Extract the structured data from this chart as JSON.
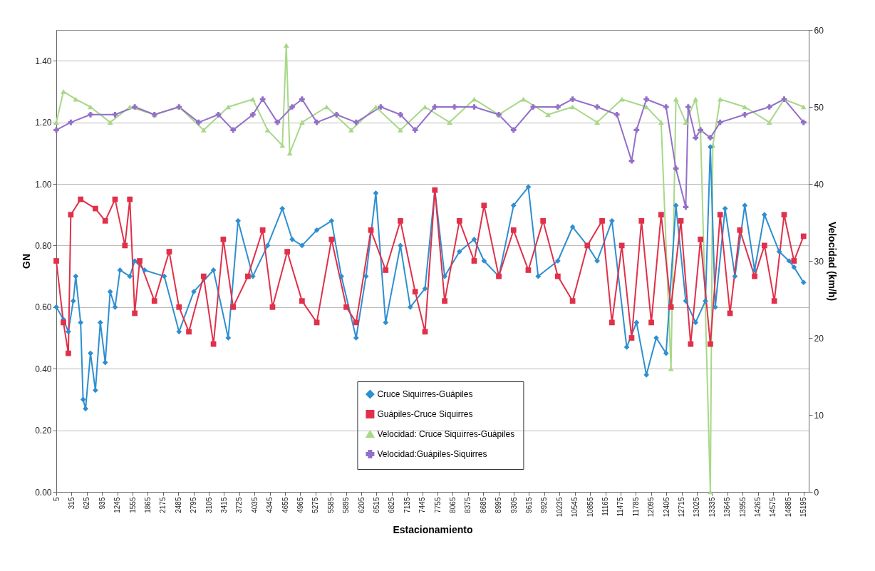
{
  "chart_data": {
    "type": "line",
    "xlabel": "Estacionamiento",
    "ylabel": "GN",
    "y2label": "Velocidad (km/h)",
    "xlim": [
      5,
      15300
    ],
    "xticks": [
      5,
      315,
      625,
      935,
      1245,
      1555,
      1865,
      2175,
      2485,
      2795,
      3105,
      3415,
      3725,
      4035,
      4345,
      4655,
      4965,
      5275,
      5585,
      5895,
      6205,
      6515,
      6825,
      7135,
      7445,
      7755,
      8065,
      8375,
      8685,
      8995,
      9305,
      9615,
      9925,
      10235,
      10545,
      10855,
      11165,
      11475,
      11785,
      12095,
      12405,
      12715,
      13025,
      13335,
      13645,
      13955,
      14265,
      14575,
      14885,
      15195
    ],
    "ylim": [
      0,
      1.5
    ],
    "yticks": [
      {
        "value": 0,
        "label": "0.00"
      },
      {
        "value": 0.2,
        "label": "0.20"
      },
      {
        "value": 0.4,
        "label": "0.40"
      },
      {
        "value": 0.6,
        "label": "0.60"
      },
      {
        "value": 0.8,
        "label": "0.80"
      },
      {
        "value": 1,
        "label": "1.00"
      },
      {
        "value": 1.2,
        "label": "1.20"
      },
      {
        "value": 1.4,
        "label": "1.40"
      }
    ],
    "y2lim": [
      0,
      60
    ],
    "y2ticks": [
      0,
      10,
      20,
      30,
      40,
      50,
      60
    ],
    "grid": "y",
    "legend": "bottom",
    "series": [
      {
        "name": "Cruce Siquirres-Guápiles",
        "color": "#2e8fd0",
        "marker": "diamond",
        "x": [
          5,
          150,
          250,
          350,
          400,
          500,
          550,
          600,
          700,
          800,
          900,
          1000,
          1100,
          1200,
          1300,
          1500,
          1600,
          1800,
          2200,
          2500,
          2800,
          3200,
          3500,
          3700,
          4000,
          4300,
          4600,
          4800,
          5000,
          5300,
          5600,
          5800,
          6100,
          6300,
          6500,
          6700,
          7000,
          7200,
          7500,
          7700,
          7900,
          8200,
          8500,
          8700,
          9000,
          9300,
          9600,
          9800,
          10200,
          10500,
          10800,
          11000,
          11300,
          11600,
          11800,
          12000,
          12200,
          12400,
          12600,
          12800,
          13000,
          13200,
          13300,
          13400,
          13600,
          13800,
          14000,
          14200,
          14400,
          14700,
          14900,
          15000,
          15195
        ],
        "values": [
          0.6,
          0.56,
          0.52,
          0.62,
          0.7,
          0.55,
          0.3,
          0.27,
          0.45,
          0.33,
          0.55,
          0.42,
          0.65,
          0.6,
          0.72,
          0.7,
          0.75,
          0.72,
          0.7,
          0.52,
          0.65,
          0.72,
          0.5,
          0.88,
          0.7,
          0.8,
          0.92,
          0.82,
          0.8,
          0.85,
          0.88,
          0.7,
          0.5,
          0.7,
          0.97,
          0.55,
          0.8,
          0.6,
          0.66,
          0.98,
          0.7,
          0.78,
          0.82,
          0.75,
          0.7,
          0.93,
          0.99,
          0.7,
          0.75,
          0.86,
          0.8,
          0.75,
          0.88,
          0.47,
          0.55,
          0.38,
          0.5,
          0.45,
          0.93,
          0.62,
          0.55,
          0.62,
          1.12,
          0.6,
          0.92,
          0.7,
          0.93,
          0.72,
          0.9,
          0.78,
          0.75,
          0.73,
          0.68
        ]
      },
      {
        "name": "Guápiles-Cruce Siquirres",
        "color": "#e0304a",
        "marker": "square",
        "x": [
          5,
          150,
          250,
          300,
          500,
          800,
          1000,
          1200,
          1400,
          1500,
          1600,
          1700,
          2000,
          2300,
          2500,
          2700,
          3000,
          3200,
          3400,
          3600,
          3900,
          4200,
          4400,
          4700,
          5000,
          5300,
          5600,
          5900,
          6100,
          6400,
          6700,
          7000,
          7300,
          7500,
          7700,
          7900,
          8200,
          8500,
          8700,
          9000,
          9300,
          9600,
          9900,
          10200,
          10500,
          10800,
          11100,
          11300,
          11500,
          11700,
          11900,
          12100,
          12300,
          12500,
          12700,
          12900,
          13100,
          13300,
          13500,
          13700,
          13900,
          14200,
          14400,
          14600,
          14800,
          15000,
          15195
        ],
        "values": [
          0.75,
          0.55,
          0.45,
          0.9,
          0.95,
          0.92,
          0.88,
          0.95,
          0.8,
          0.95,
          0.58,
          0.75,
          0.62,
          0.78,
          0.6,
          0.52,
          0.7,
          0.48,
          0.82,
          0.6,
          0.7,
          0.85,
          0.6,
          0.78,
          0.62,
          0.55,
          0.82,
          0.6,
          0.55,
          0.85,
          0.72,
          0.88,
          0.65,
          0.52,
          0.98,
          0.62,
          0.88,
          0.75,
          0.93,
          0.7,
          0.85,
          0.72,
          0.88,
          0.7,
          0.62,
          0.8,
          0.88,
          0.55,
          0.8,
          0.5,
          0.88,
          0.55,
          0.9,
          0.6,
          0.88,
          0.48,
          0.82,
          0.48,
          0.9,
          0.58,
          0.85,
          0.7,
          0.8,
          0.62,
          0.9,
          0.75,
          0.83
        ]
      },
      {
        "name": "Velocidad: Cruce Siquirres-Guápiles",
        "color": "#a8d888",
        "marker": "triangle",
        "axis": "y2",
        "x": [
          5,
          150,
          400,
          700,
          1100,
          1500,
          2000,
          2500,
          3000,
          3500,
          4000,
          4300,
          4600,
          4680,
          4750,
          5000,
          5500,
          6000,
          6500,
          7000,
          7500,
          8000,
          8500,
          9000,
          9500,
          10000,
          10500,
          11000,
          11500,
          12000,
          12300,
          12500,
          12600,
          12800,
          13000,
          13100,
          13300,
          13350,
          13500,
          14000,
          14500,
          14800,
          15195
        ],
        "values": [
          48,
          52,
          51,
          50,
          48,
          50,
          49,
          50,
          47,
          50,
          51,
          47,
          45,
          58,
          44,
          48,
          50,
          47,
          50,
          47,
          50,
          48,
          51,
          49,
          51,
          49,
          50,
          48,
          51,
          50,
          48,
          16,
          51,
          48,
          51,
          47,
          0,
          45,
          51,
          50,
          48,
          51,
          50
        ]
      },
      {
        "name": "Velocidad:Guápiles-Siquirres",
        "color": "#9370c8",
        "marker": "cross",
        "axis": "y2",
        "x": [
          5,
          300,
          700,
          1200,
          1600,
          2000,
          2500,
          2900,
          3300,
          3600,
          4000,
          4200,
          4500,
          4800,
          5000,
          5300,
          5700,
          6100,
          6600,
          7000,
          7300,
          7700,
          8100,
          8500,
          9000,
          9300,
          9700,
          10200,
          10500,
          11000,
          11400,
          11700,
          11800,
          12000,
          12400,
          12600,
          12800,
          12850,
          13000,
          13100,
          13300,
          13500,
          14000,
          14500,
          14800,
          15195
        ],
        "values": [
          47,
          48,
          49,
          49,
          50,
          49,
          50,
          48,
          49,
          47,
          49,
          51,
          48,
          50,
          51,
          48,
          49,
          48,
          50,
          49,
          47,
          50,
          50,
          50,
          49,
          47,
          50,
          50,
          51,
          50,
          49,
          43,
          47,
          51,
          50,
          42,
          37,
          50,
          46,
          47,
          46,
          48,
          49,
          50,
          51,
          48
        ]
      }
    ]
  }
}
